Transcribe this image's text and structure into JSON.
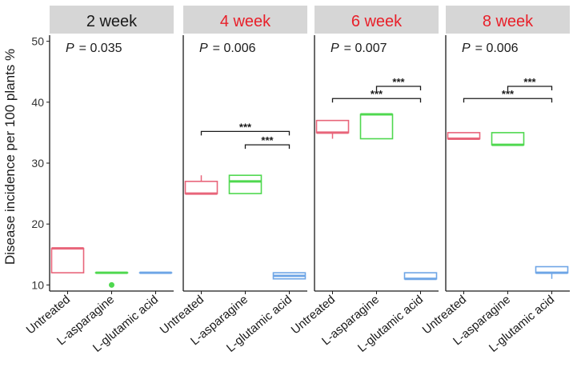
{
  "chart_data": {
    "type": "box",
    "ylabel": "Disease incidence per 100 plants %",
    "ylim": [
      9,
      51
    ],
    "yticks": [
      10,
      20,
      30,
      40,
      50
    ],
    "categories": [
      "Untreated",
      "L-asparagine",
      "L-glutamic acid"
    ],
    "category_colors": [
      "#e8657a",
      "#4fd84f",
      "#6fa6e6"
    ],
    "panels": [
      {
        "title": "2 week",
        "title_color": "#1a1a1a",
        "p_label": "P",
        "p_value": "= 0.035",
        "boxes": [
          {
            "category": "Untreated",
            "q1": 12,
            "median": 16,
            "q3": 16,
            "whisker_low": 12,
            "whisker_high": 16,
            "outliers": []
          },
          {
            "category": "L-asparagine",
            "q1": 12,
            "median": 12,
            "q3": 12,
            "whisker_low": 12,
            "whisker_high": 12,
            "outliers": [
              10
            ]
          },
          {
            "category": "L-glutamic acid",
            "q1": 12,
            "median": 12,
            "q3": 12,
            "whisker_low": 12,
            "whisker_high": 12,
            "outliers": []
          }
        ],
        "brackets": []
      },
      {
        "title": "4 week",
        "title_color": "#e8202a",
        "p_label": "P",
        "p_value": "= 0.006",
        "boxes": [
          {
            "category": "Untreated",
            "q1": 25,
            "median": 25,
            "q3": 27,
            "whisker_low": 25,
            "whisker_high": 28,
            "outliers": []
          },
          {
            "category": "L-asparagine",
            "q1": 25,
            "median": 27,
            "q3": 28,
            "whisker_low": 25,
            "whisker_high": 28,
            "outliers": []
          },
          {
            "category": "L-glutamic acid",
            "q1": 11,
            "median": 11.5,
            "q3": 12,
            "whisker_low": 11,
            "whisker_high": 12,
            "outliers": []
          }
        ],
        "brackets": [
          {
            "from": 0,
            "to": 2,
            "y": 35.2,
            "label": "***"
          },
          {
            "from": 1,
            "to": 2,
            "y": 33.0,
            "label": "***"
          }
        ]
      },
      {
        "title": "6 week",
        "title_color": "#e8202a",
        "p_label": "P",
        "p_value": "= 0.007",
        "boxes": [
          {
            "category": "Untreated",
            "q1": 35,
            "median": 35,
            "q3": 37,
            "whisker_low": 34,
            "whisker_high": 37,
            "outliers": []
          },
          {
            "category": "L-asparagine",
            "q1": 34,
            "median": 38,
            "q3": 38,
            "whisker_low": 34,
            "whisker_high": 38,
            "outliers": []
          },
          {
            "category": "L-glutamic acid",
            "q1": 11,
            "median": 11,
            "q3": 12,
            "whisker_low": 11,
            "whisker_high": 12,
            "outliers": []
          }
        ],
        "brackets": [
          {
            "from": 0,
            "to": 2,
            "y": 40.6,
            "label": "***"
          },
          {
            "from": 1,
            "to": 2,
            "y": 42.6,
            "label": "***"
          }
        ]
      },
      {
        "title": "8 week",
        "title_color": "#e8202a",
        "p_label": "P",
        "p_value": "= 0.006",
        "boxes": [
          {
            "category": "Untreated",
            "q1": 34,
            "median": 34,
            "q3": 35,
            "whisker_low": 34,
            "whisker_high": 35,
            "outliers": []
          },
          {
            "category": "L-asparagine",
            "q1": 33,
            "median": 33,
            "q3": 35,
            "whisker_low": 33,
            "whisker_high": 35,
            "outliers": []
          },
          {
            "category": "L-glutamic acid",
            "q1": 12,
            "median": 12,
            "q3": 13,
            "whisker_low": 11,
            "whisker_high": 13,
            "outliers": []
          }
        ],
        "brackets": [
          {
            "from": 0,
            "to": 2,
            "y": 40.6,
            "label": "***"
          },
          {
            "from": 1,
            "to": 2,
            "y": 42.6,
            "label": "***"
          }
        ]
      }
    ]
  }
}
